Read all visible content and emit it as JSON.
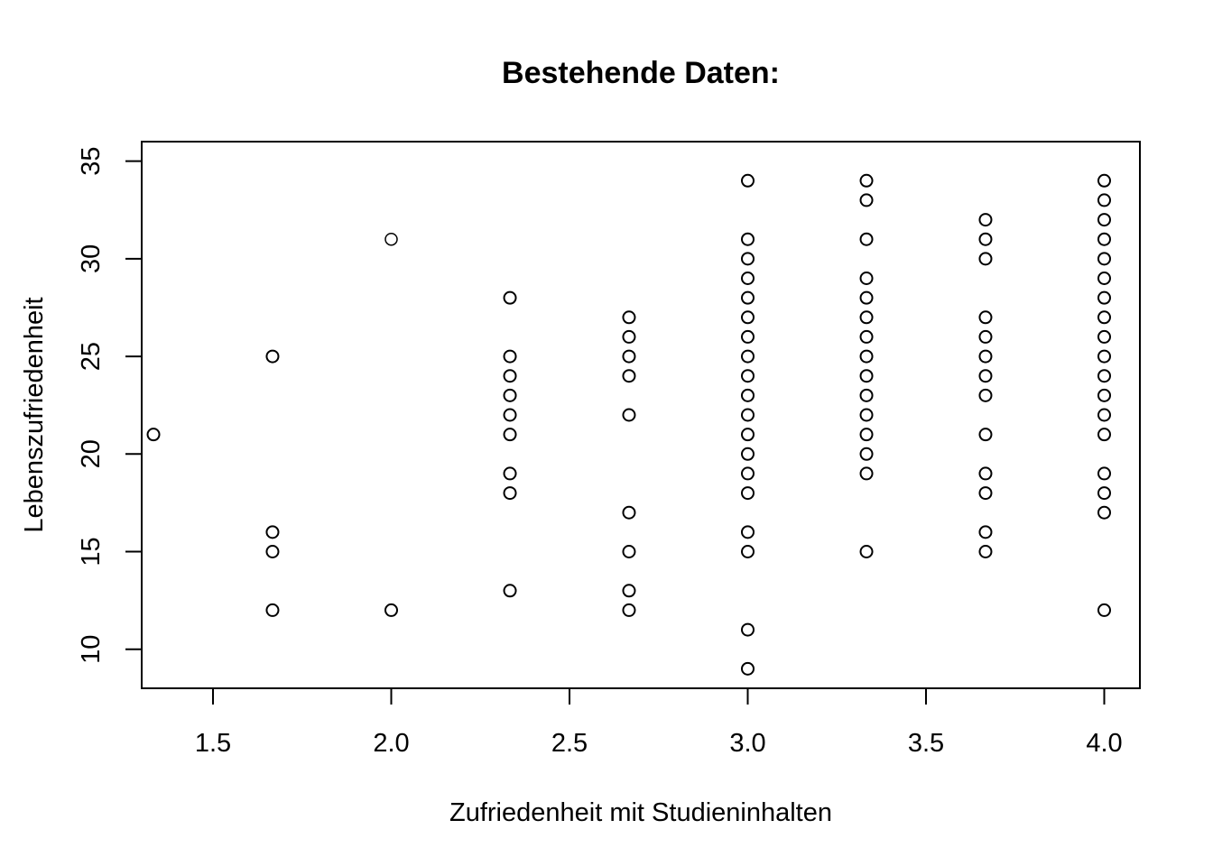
{
  "chart_data": {
    "type": "scatter",
    "title": "Bestehende Daten:",
    "xlabel": "Zufriedenheit mit Studieninhalten",
    "ylabel": "Lebenszufriedenheit",
    "xlim": [
      1.3,
      4.1
    ],
    "ylim": [
      8,
      36
    ],
    "xticks": [
      1.5,
      2.0,
      2.5,
      3.0,
      3.5,
      4.0
    ],
    "xtick_labels": [
      "1.5",
      "2.0",
      "2.5",
      "3.0",
      "3.5",
      "4.0"
    ],
    "yticks": [
      10,
      15,
      20,
      25,
      30,
      35
    ],
    "ytick_labels": [
      "10",
      "15",
      "20",
      "25",
      "30",
      "35"
    ],
    "grid": false,
    "series": [
      {
        "marker": "open-circle",
        "color": "#000000",
        "points": [
          [
            1.333,
            21
          ],
          [
            1.667,
            25
          ],
          [
            1.667,
            16
          ],
          [
            1.667,
            15
          ],
          [
            1.667,
            12
          ],
          [
            2.0,
            12
          ],
          [
            2.333,
            28
          ],
          [
            2.333,
            25
          ],
          [
            2.333,
            24
          ],
          [
            2.333,
            23
          ],
          [
            2.333,
            22
          ],
          [
            2.333,
            21
          ],
          [
            2.333,
            19
          ],
          [
            2.333,
            18
          ],
          [
            2.333,
            13
          ],
          [
            2.667,
            27
          ],
          [
            2.667,
            26
          ],
          [
            2.667,
            25
          ],
          [
            2.667,
            24
          ],
          [
            2.667,
            22
          ],
          [
            2.667,
            17
          ],
          [
            2.667,
            15
          ],
          [
            2.667,
            13
          ],
          [
            2.667,
            12
          ],
          [
            3.0,
            34
          ],
          [
            3.0,
            31
          ],
          [
            3.0,
            30
          ],
          [
            3.0,
            29
          ],
          [
            3.0,
            28
          ],
          [
            3.0,
            27
          ],
          [
            3.0,
            26
          ],
          [
            3.0,
            25
          ],
          [
            3.0,
            24
          ],
          [
            3.0,
            23
          ],
          [
            3.0,
            22
          ],
          [
            3.0,
            21
          ],
          [
            3.0,
            20
          ],
          [
            3.0,
            19
          ],
          [
            3.0,
            18
          ],
          [
            3.0,
            16
          ],
          [
            3.0,
            15
          ],
          [
            3.0,
            11
          ],
          [
            3.0,
            9
          ],
          [
            3.333,
            34
          ],
          [
            3.333,
            33
          ],
          [
            3.333,
            31
          ],
          [
            3.333,
            29
          ],
          [
            3.333,
            28
          ],
          [
            3.333,
            27
          ],
          [
            3.333,
            26
          ],
          [
            3.333,
            25
          ],
          [
            3.333,
            24
          ],
          [
            3.333,
            23
          ],
          [
            3.333,
            22
          ],
          [
            3.333,
            21
          ],
          [
            3.333,
            20
          ],
          [
            3.333,
            19
          ],
          [
            3.333,
            15
          ],
          [
            3.667,
            32
          ],
          [
            3.667,
            31
          ],
          [
            3.667,
            30
          ],
          [
            3.667,
            27
          ],
          [
            3.667,
            26
          ],
          [
            3.667,
            25
          ],
          [
            3.667,
            24
          ],
          [
            3.667,
            23
          ],
          [
            3.667,
            21
          ],
          [
            3.667,
            19
          ],
          [
            3.667,
            18
          ],
          [
            3.667,
            16
          ],
          [
            3.667,
            15
          ],
          [
            4.0,
            34
          ],
          [
            4.0,
            33
          ],
          [
            4.0,
            32
          ],
          [
            4.0,
            31
          ],
          [
            4.0,
            30
          ],
          [
            4.0,
            29
          ],
          [
            4.0,
            28
          ],
          [
            4.0,
            27
          ],
          [
            4.0,
            26
          ],
          [
            4.0,
            25
          ],
          [
            4.0,
            24
          ],
          [
            4.0,
            23
          ],
          [
            4.0,
            22
          ],
          [
            4.0,
            21
          ],
          [
            4.0,
            19
          ],
          [
            4.0,
            18
          ],
          [
            4.0,
            17
          ],
          [
            4.0,
            12
          ]
        ]
      },
      {
        "marker": "filled-circle",
        "color": "#ff0000",
        "points": [
          [
            2.0,
            31
          ]
        ]
      }
    ]
  }
}
